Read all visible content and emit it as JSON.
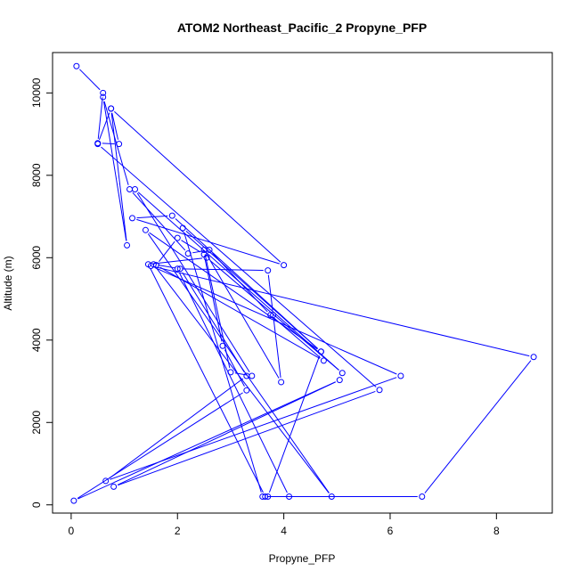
{
  "chart_data": {
    "type": "line",
    "title": "ATOM2 Northeast_Pacific_2 Propyne_PFP",
    "xlabel": "Propyne_PFP",
    "ylabel": "Altitude (m)",
    "xlim": [
      -0.35,
      9.05
    ],
    "ylim": [
      -200,
      10980
    ],
    "xticks": [
      0,
      2,
      4,
      6,
      8
    ],
    "yticks": [
      0,
      2000,
      4000,
      6000,
      8000,
      10000
    ],
    "grid": false,
    "color": "#0000ff",
    "series": [
      {
        "x": [
          0.1,
          0.6,
          0.5,
          0.9,
          0.75,
          1.05,
          0.6,
          1.1,
          2.2,
          2.6,
          3.75,
          4.75,
          1.6,
          2.0,
          2.5,
          2.85,
          3.3,
          0.05,
          5.05,
          0.8,
          5.8,
          0.5,
          0.75,
          4.0,
          1.15,
          1.9,
          4.7,
          1.4,
          4.9,
          1.55,
          2.05,
          3.3,
          0.65,
          6.2,
          1.5,
          8.7,
          6.6,
          3.7,
          4.7,
          2.1,
          3.6,
          4.1,
          2.0,
          3.7,
          3.8,
          3.95,
          2.5,
          3.0,
          3.4,
          1.2,
          5.1,
          2.55,
          1.45,
          3.65
        ],
        "y": [
          10650,
          10000,
          8780,
          8760,
          9620,
          6300,
          9900,
          7660,
          6100,
          6190,
          4610,
          3500,
          5820,
          6480,
          6080,
          3860,
          2780,
          100,
          3030,
          440,
          2790,
          8760,
          9620,
          5820,
          6960,
          7020,
          3720,
          6670,
          200,
          5840,
          5730,
          3130,
          580,
          3130,
          5800,
          3590,
          200,
          200,
          3720,
          6720,
          200,
          200,
          5730,
          5690,
          4610,
          2980,
          6190,
          3220,
          3130,
          7660,
          3200,
          6000,
          5840,
          200
        ]
      }
    ]
  }
}
